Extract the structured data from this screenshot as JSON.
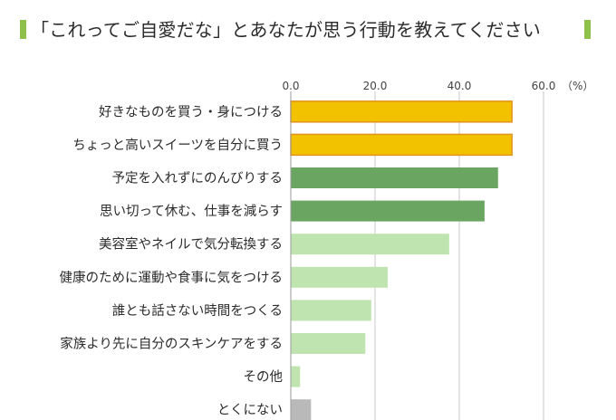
{
  "title": "「これってご自愛だな」とあなたが思う行動を教えてください",
  "chart_data": {
    "type": "bar",
    "orientation": "horizontal",
    "categories": [
      "好きなものを買う・身につける",
      "ちょっと高いスイーツを自分に買う",
      "予定を入れずにのんびりする",
      "思い切って休む、仕事を減らす",
      "美容室やネイルで気分転換する",
      "健康のために運動や食事に気をつける",
      "誰とも話さない時間をつくる",
      "家族より先に自分のスキンケアをする",
      "その他",
      "とくにない"
    ],
    "values": [
      52.5,
      52.5,
      49.2,
      46.0,
      37.6,
      23.0,
      19.1,
      17.7,
      2.2,
      4.8
    ],
    "xlim": [
      0,
      60
    ],
    "ticks": [
      "0.0",
      "20.0",
      "40.0",
      "60.0"
    ],
    "tick_values": [
      0,
      20,
      40,
      60
    ],
    "unit": "（%）",
    "grid": true,
    "colors": {
      "top": "#f2c200",
      "top_border": "#e2921e",
      "mid": "#6aa661",
      "low": "#bfe4b0",
      "none": "#b9b9b9",
      "grid": "#c8c8c8",
      "title_accent": "#8ec04a"
    },
    "bar_colors": [
      "top",
      "top",
      "mid",
      "mid",
      "low",
      "low",
      "low",
      "low",
      "low",
      "none"
    ]
  }
}
